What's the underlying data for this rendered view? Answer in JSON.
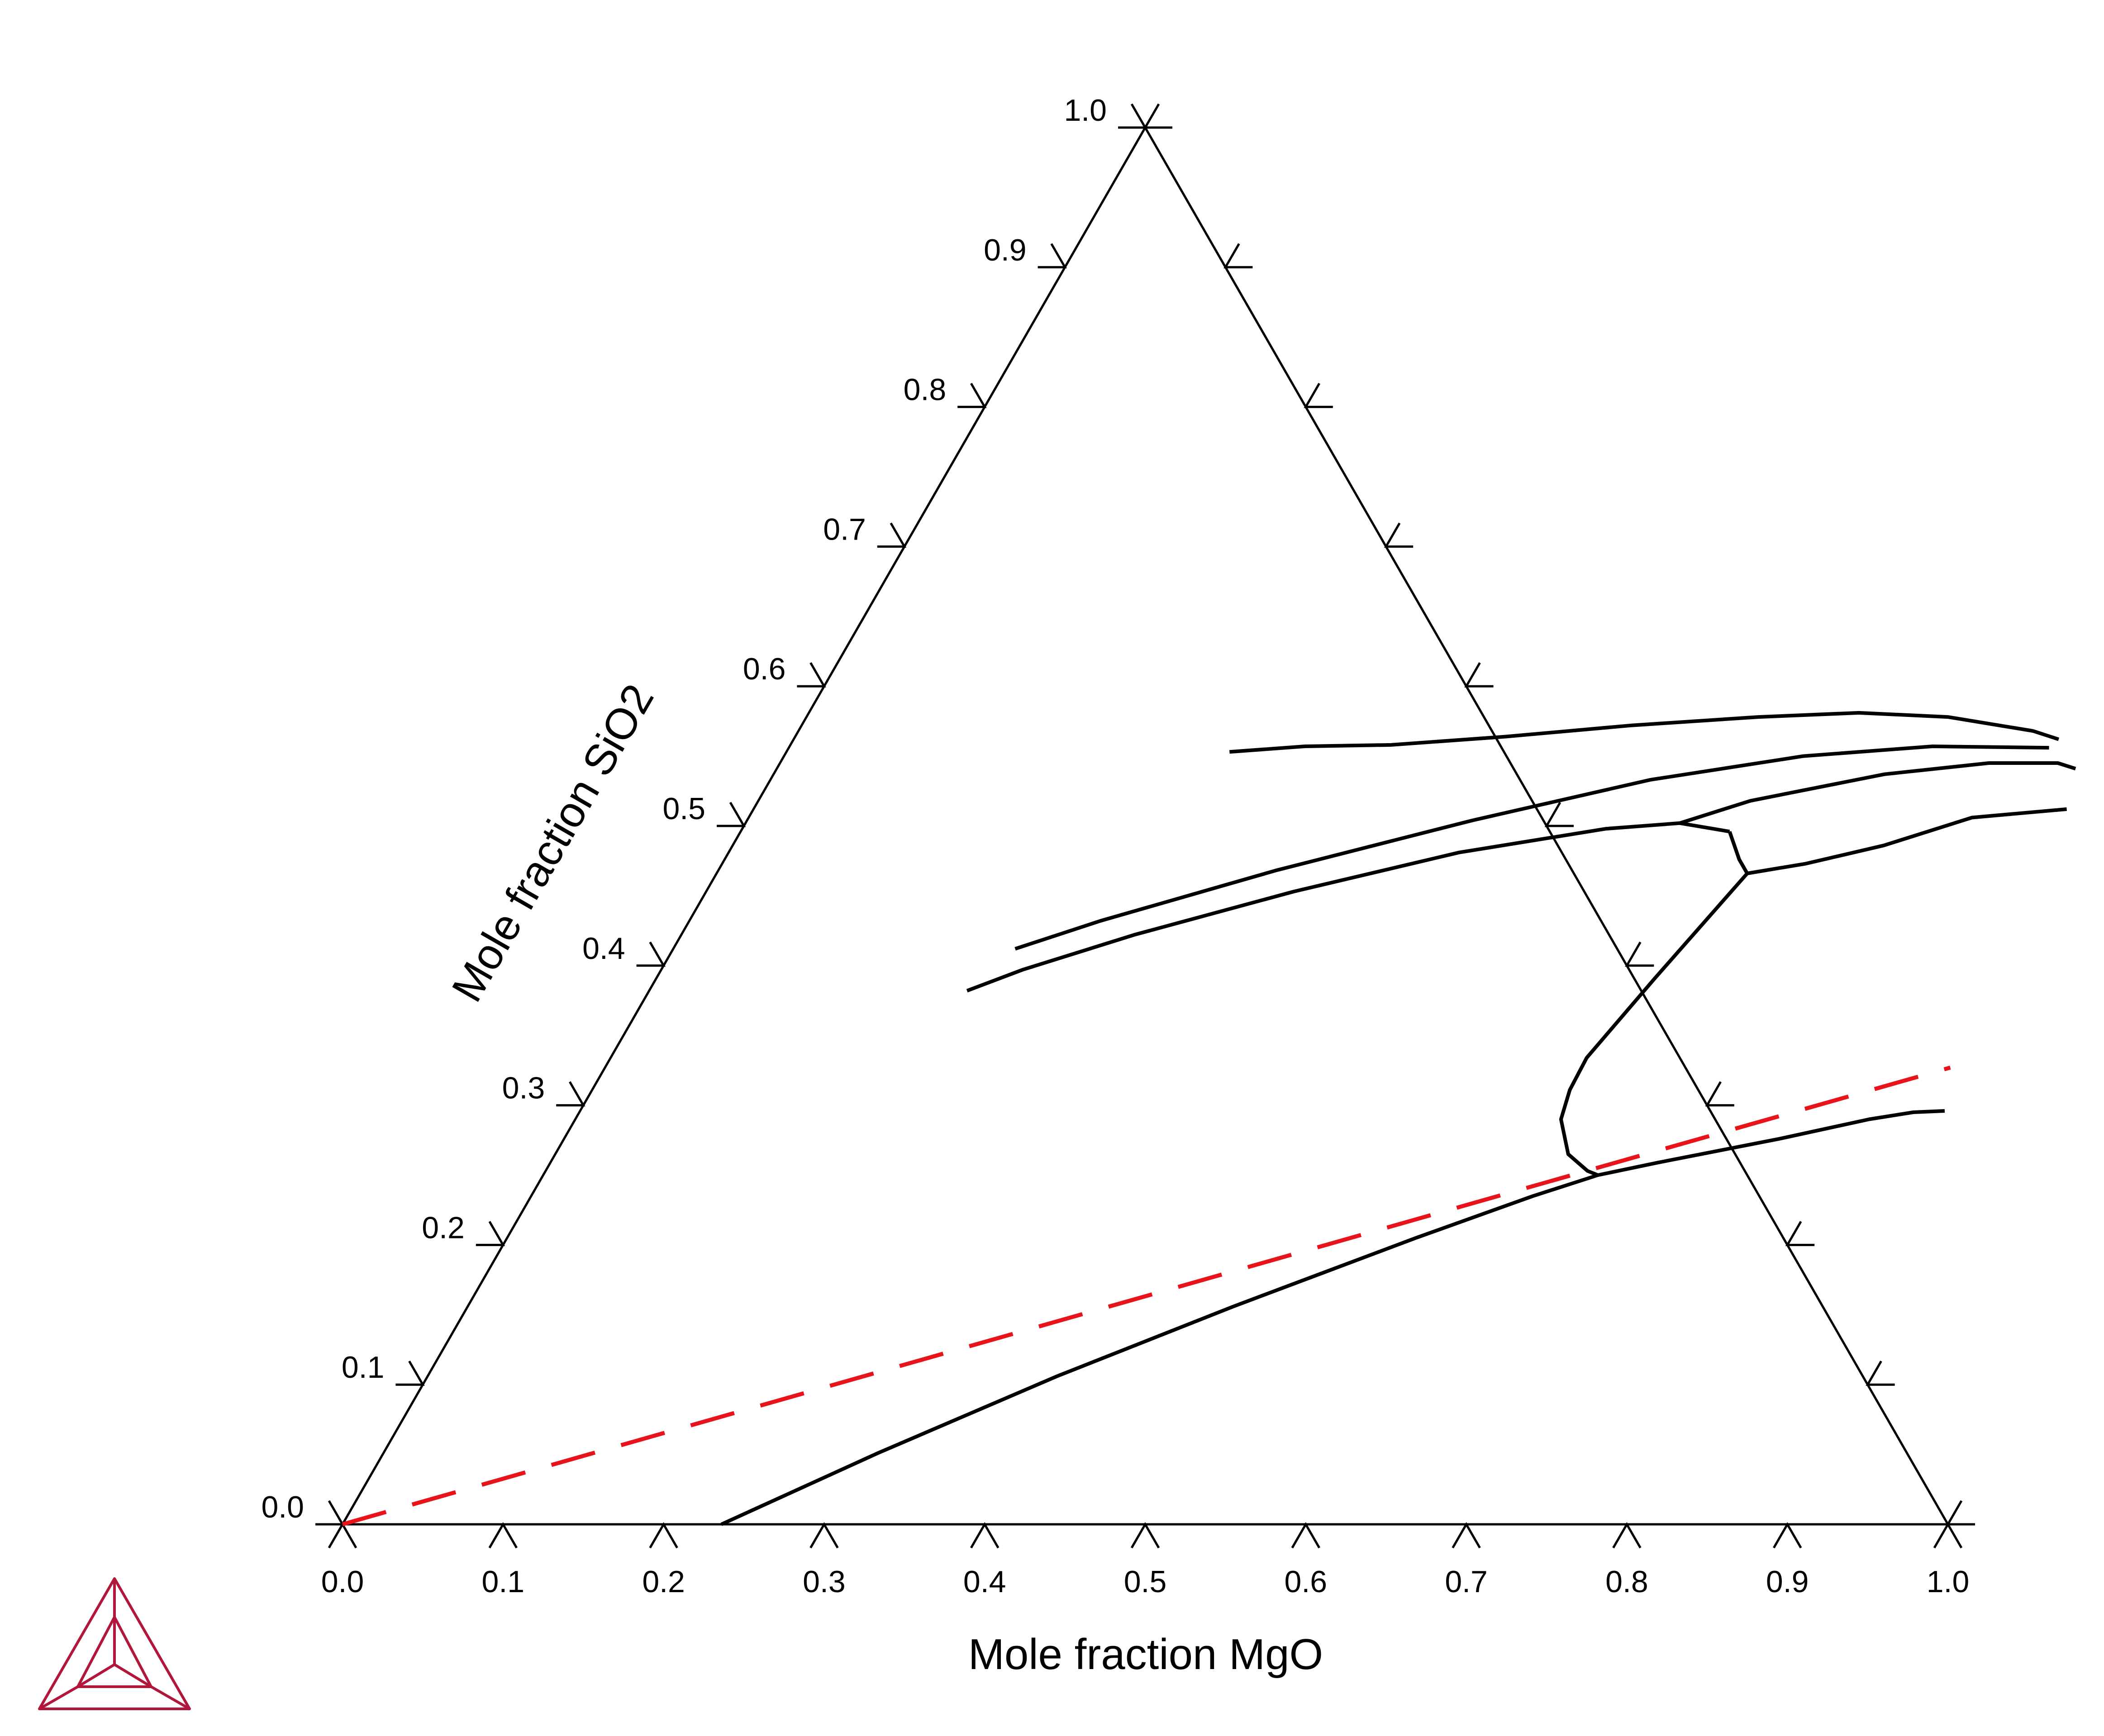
{
  "chart_data": {
    "type": "line",
    "diagram": "ternary",
    "xlabel": "Mole fraction MgO",
    "ylabel": "Mole fraction SiO2",
    "xlim": [
      0,
      1
    ],
    "ylim": [
      0,
      1
    ],
    "ticks": [
      "0.0",
      "0.1",
      "0.2",
      "0.3",
      "0.4",
      "0.5",
      "0.6",
      "0.7",
      "0.8",
      "0.9",
      "1.0"
    ],
    "grid": false,
    "colors": {
      "boundary": "#000000",
      "dashed_line": "#e8141c",
      "logo": "#b0173a"
    },
    "series": [
      {
        "style": "solid",
        "points": [
          [
            0.276,
            0.553
          ],
          [
            0.321,
            0.557
          ],
          [
            0.374,
            0.558
          ],
          [
            0.443,
            0.564
          ],
          [
            0.517,
            0.572
          ],
          [
            0.593,
            0.578
          ],
          [
            0.654,
            0.581
          ],
          [
            0.711,
            0.578
          ],
          [
            0.769,
            0.568
          ],
          [
            0.788,
            0.562
          ]
        ]
      },
      {
        "style": "solid",
        "points": [
          [
            0.213,
            0.412
          ],
          [
            0.256,
            0.432
          ],
          [
            0.347,
            0.468
          ],
          [
            0.452,
            0.504
          ],
          [
            0.548,
            0.533
          ],
          [
            0.635,
            0.55
          ],
          [
            0.712,
            0.557
          ],
          [
            0.785,
            0.556
          ]
        ]
      },
      {
        "style": "solid",
        "points": [
          [
            0.198,
            0.382
          ],
          [
            0.225,
            0.397
          ],
          [
            0.282,
            0.422
          ],
          [
            0.366,
            0.453
          ],
          [
            0.455,
            0.481
          ],
          [
            0.538,
            0.498
          ],
          [
            0.582,
            0.502
          ],
          [
            0.616,
            0.496
          ]
        ]
      },
      {
        "style": "solid",
        "points": [
          [
            0.582,
            0.502
          ],
          [
            0.618,
            0.518
          ],
          [
            0.692,
            0.537
          ],
          [
            0.753,
            0.545
          ],
          [
            0.796,
            0.545
          ],
          [
            0.809,
            0.541
          ]
        ]
      },
      {
        "style": "solid",
        "points": [
          [
            0.616,
            0.496
          ],
          [
            0.632,
            0.476
          ],
          [
            0.642,
            0.466
          ]
        ]
      },
      {
        "style": "solid",
        "points": [
          [
            0.642,
            0.466
          ],
          [
            0.675,
            0.473
          ],
          [
            0.717,
            0.486
          ],
          [
            0.762,
            0.506
          ],
          [
            0.818,
            0.512
          ]
        ]
      },
      {
        "style": "solid",
        "points": [
          [
            0.642,
            0.466
          ],
          [
            0.622,
            0.391
          ],
          [
            0.608,
            0.334
          ],
          [
            0.609,
            0.311
          ],
          [
            0.614,
            0.29
          ],
          [
            0.631,
            0.265
          ],
          [
            0.649,
            0.253
          ],
          [
            0.657,
            0.25
          ]
        ]
      },
      {
        "style": "solid",
        "points": [
          [
            0.236,
            0.0
          ],
          [
            0.308,
            0.051
          ],
          [
            0.392,
            0.106
          ],
          [
            0.477,
            0.156
          ],
          [
            0.566,
            0.205
          ],
          [
            0.624,
            0.235
          ],
          [
            0.657,
            0.25
          ]
        ]
      },
      {
        "style": "solid",
        "points": [
          [
            0.657,
            0.25
          ],
          [
            0.69,
            0.259
          ],
          [
            0.757,
            0.276
          ],
          [
            0.806,
            0.29
          ],
          [
            0.831,
            0.295
          ],
          [
            0.85,
            0.296
          ]
        ]
      },
      {
        "style": "dashed",
        "points": [
          [
            0.0,
            0.0
          ],
          [
            0.838,
            0.327
          ]
        ]
      }
    ]
  }
}
